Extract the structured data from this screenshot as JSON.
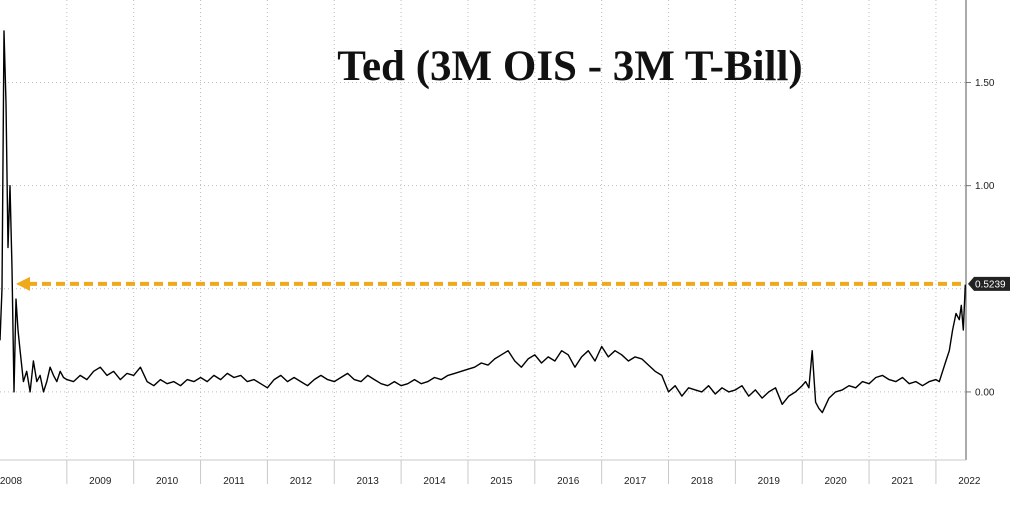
{
  "chart_data": {
    "type": "line",
    "title": "Ted (3M OIS - 3M T-Bill)",
    "xlabel": "",
    "ylabel": "",
    "x_ticks": [
      "2008",
      "2009",
      "2010",
      "2011",
      "2012",
      "2013",
      "2014",
      "2015",
      "2016",
      "2017",
      "2018",
      "2019",
      "2020",
      "2021",
      "2022"
    ],
    "y_ticks": [
      "1.50",
      "1.00",
      "0.00"
    ],
    "xlim": [
      2008.0,
      2022.45
    ],
    "ylim": [
      -0.33,
      1.9
    ],
    "grid": true,
    "y_axis_position": "right",
    "series": [
      {
        "color": "#000000",
        "x": [
          2008.0,
          2008.03,
          2008.06,
          2008.09,
          2008.12,
          2008.15,
          2008.18,
          2008.21,
          2008.24,
          2008.27,
          2008.3,
          2008.35,
          2008.4,
          2008.45,
          2008.5,
          2008.55,
          2008.6,
          2008.65,
          2008.7,
          2008.75,
          2008.8,
          2008.85,
          2008.9,
          2008.95,
          2009.0,
          2009.1,
          2009.2,
          2009.3,
          2009.4,
          2009.5,
          2009.6,
          2009.7,
          2009.8,
          2009.9,
          2010.0,
          2010.1,
          2010.2,
          2010.3,
          2010.4,
          2010.5,
          2010.6,
          2010.7,
          2010.8,
          2010.9,
          2011.0,
          2011.1,
          2011.2,
          2011.3,
          2011.4,
          2011.5,
          2011.6,
          2011.7,
          2011.8,
          2011.9,
          2012.0,
          2012.1,
          2012.2,
          2012.3,
          2012.4,
          2012.5,
          2012.6,
          2012.7,
          2012.8,
          2012.9,
          2013.0,
          2013.1,
          2013.2,
          2013.3,
          2013.4,
          2013.5,
          2013.6,
          2013.7,
          2013.8,
          2013.9,
          2014.0,
          2014.1,
          2014.2,
          2014.3,
          2014.4,
          2014.5,
          2014.6,
          2014.7,
          2014.8,
          2014.9,
          2015.0,
          2015.1,
          2015.2,
          2015.3,
          2015.4,
          2015.5,
          2015.6,
          2015.7,
          2015.8,
          2015.9,
          2016.0,
          2016.1,
          2016.2,
          2016.3,
          2016.4,
          2016.5,
          2016.6,
          2016.7,
          2016.8,
          2016.9,
          2017.0,
          2017.1,
          2017.2,
          2017.3,
          2017.4,
          2017.5,
          2017.6,
          2017.7,
          2017.8,
          2017.9,
          2018.0,
          2018.1,
          2018.2,
          2018.3,
          2018.4,
          2018.5,
          2018.6,
          2018.7,
          2018.8,
          2018.9,
          2019.0,
          2019.1,
          2019.2,
          2019.3,
          2019.4,
          2019.5,
          2019.6,
          2019.7,
          2019.8,
          2019.9,
          2020.0,
          2020.05,
          2020.1,
          2020.15,
          2020.2,
          2020.25,
          2020.3,
          2020.4,
          2020.5,
          2020.6,
          2020.7,
          2020.8,
          2020.9,
          2021.0,
          2021.1,
          2021.2,
          2021.3,
          2021.4,
          2021.5,
          2021.6,
          2021.7,
          2021.8,
          2021.9,
          2022.0,
          2022.05,
          2022.1,
          2022.15,
          2022.2,
          2022.25,
          2022.3,
          2022.35,
          2022.38,
          2022.41,
          2022.44
        ],
        "values": [
          0.25,
          0.5,
          1.75,
          1.4,
          0.7,
          1.0,
          0.6,
          0.0,
          0.45,
          0.3,
          0.2,
          0.05,
          0.1,
          0.0,
          0.15,
          0.05,
          0.08,
          0.0,
          0.05,
          0.12,
          0.08,
          0.05,
          0.1,
          0.07,
          0.06,
          0.05,
          0.08,
          0.06,
          0.1,
          0.12,
          0.08,
          0.1,
          0.06,
          0.09,
          0.08,
          0.12,
          0.05,
          0.03,
          0.06,
          0.04,
          0.05,
          0.03,
          0.06,
          0.05,
          0.07,
          0.05,
          0.08,
          0.06,
          0.09,
          0.07,
          0.08,
          0.05,
          0.06,
          0.04,
          0.02,
          0.06,
          0.08,
          0.05,
          0.07,
          0.05,
          0.03,
          0.06,
          0.08,
          0.06,
          0.05,
          0.07,
          0.09,
          0.06,
          0.05,
          0.08,
          0.06,
          0.04,
          0.03,
          0.05,
          0.03,
          0.04,
          0.06,
          0.04,
          0.05,
          0.07,
          0.06,
          0.08,
          0.09,
          0.1,
          0.11,
          0.12,
          0.14,
          0.13,
          0.16,
          0.18,
          0.2,
          0.15,
          0.12,
          0.16,
          0.18,
          0.14,
          0.17,
          0.15,
          0.2,
          0.18,
          0.12,
          0.17,
          0.2,
          0.15,
          0.22,
          0.17,
          0.2,
          0.18,
          0.15,
          0.17,
          0.16,
          0.13,
          0.1,
          0.08,
          0.0,
          0.03,
          -0.02,
          0.02,
          0.01,
          0.0,
          0.03,
          -0.01,
          0.02,
          0.0,
          0.01,
          0.03,
          -0.02,
          0.01,
          -0.03,
          0.0,
          0.02,
          -0.06,
          -0.02,
          0.0,
          0.03,
          0.05,
          0.02,
          0.2,
          -0.05,
          -0.08,
          -0.1,
          -0.03,
          0.0,
          0.01,
          0.03,
          0.02,
          0.05,
          0.04,
          0.07,
          0.08,
          0.06,
          0.05,
          0.07,
          0.04,
          0.05,
          0.03,
          0.05,
          0.06,
          0.05,
          0.1,
          0.15,
          0.2,
          0.3,
          0.38,
          0.35,
          0.42,
          0.3,
          0.52
        ]
      }
    ],
    "reference_line": {
      "value": 0.5239,
      "label": "0.5239",
      "color": "#f0a91b",
      "style": "dashed",
      "arrow": "left"
    }
  }
}
